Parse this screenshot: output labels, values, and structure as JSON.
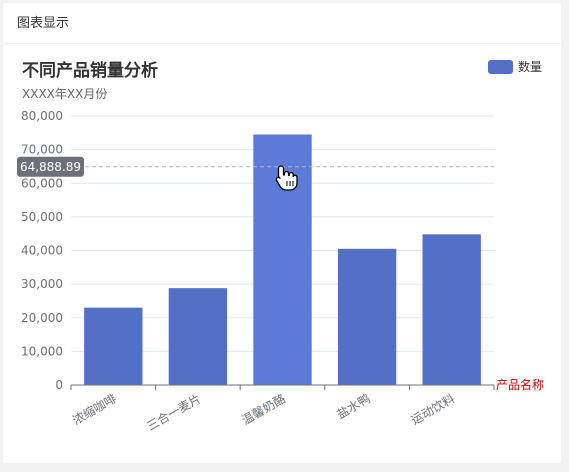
{
  "panel": {
    "header_title": "图表显示"
  },
  "colors": {
    "bar": "#5470c6",
    "bar_hover": "#5c7bd9",
    "axis_name": "#c00000",
    "tooltip_bg": "#6e7079"
  },
  "chart_data": {
    "type": "bar",
    "title": "不同产品销量分析",
    "subtitle": "XXXX年XX月份",
    "xlabel": "产品名称",
    "ylabel": "",
    "categories": [
      "浓缩咖啡",
      "三合一麦片",
      "温馨奶酪",
      "盐水鸭",
      "运动饮料"
    ],
    "series": [
      {
        "name": "数量",
        "values": [
          23000,
          28800,
          74500,
          40500,
          44800
        ]
      }
    ],
    "ylim": [
      0,
      80000
    ],
    "yticks": [
      "0",
      "10,000",
      "20,000",
      "30,000",
      "40,000",
      "50,000",
      "60,000",
      "70,000",
      "80,000"
    ],
    "legend": "top-right",
    "grid": true,
    "hover": {
      "category": "温馨奶酪",
      "pointer_value_label": "64,888.89"
    }
  }
}
